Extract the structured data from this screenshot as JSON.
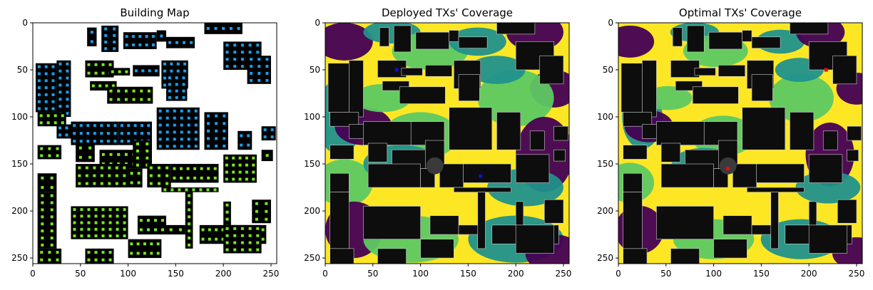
{
  "chart_data": [
    {
      "type": "heatmap",
      "title": "Building Map",
      "xlim": [
        0,
        256
      ],
      "ylim": [
        256,
        0
      ],
      "xticks": [
        0,
        50,
        100,
        150,
        200,
        250
      ],
      "yticks": [
        0,
        50,
        100,
        150,
        200,
        250
      ],
      "colors": {
        "background": "#ffffff",
        "building": "#000000",
        "marker_blue": "#1a9ee8",
        "marker_green": "#7ae51a"
      }
    },
    {
      "type": "heatmap",
      "title": "Deployed TXs' Coverage",
      "xlim": [
        0,
        256
      ],
      "ylim": [
        256,
        0
      ],
      "xticks": [
        0,
        50,
        100,
        150,
        200,
        250
      ],
      "yticks": [
        0,
        50,
        100,
        150,
        200,
        250
      ],
      "tx_color": "#1010d0",
      "tx_points": [
        {
          "x": 75,
          "y": 50
        },
        {
          "x": 163,
          "y": 163
        }
      ],
      "colors": {
        "high": "#fde725",
        "mid": "#5ec962",
        "low": "#21918c",
        "none": "#440154",
        "building": "#0d0d0d"
      }
    },
    {
      "type": "heatmap",
      "title": "Optimal TXs' Coverage",
      "xlim": [
        0,
        256
      ],
      "ylim": [
        256,
        0
      ],
      "xticks": [
        0,
        50,
        100,
        150,
        200,
        250
      ],
      "yticks": [
        0,
        50,
        100,
        150,
        200,
        250
      ],
      "tx_color": "#e01010",
      "tx_points": [
        {
          "x": 218,
          "y": 50
        },
        {
          "x": 115,
          "y": 155
        }
      ],
      "colors": {
        "high": "#fde725",
        "mid": "#5ec962",
        "low": "#21918c",
        "none": "#440154",
        "building": "#0d0d0d"
      }
    }
  ]
}
